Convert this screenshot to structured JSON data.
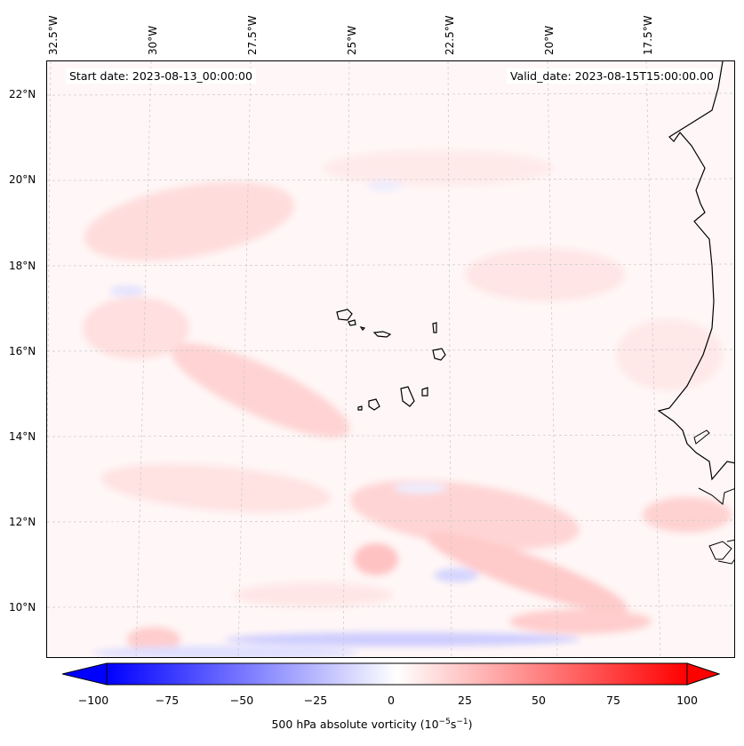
{
  "map": {
    "start_date": "Start date: 2023-08-13_00:00:00",
    "valid_date": "Valid_date: 2023-08-15T15:00:00.00",
    "lon_labels": [
      "32.5°W",
      "30°W",
      "27.5°W",
      "25°W",
      "22.5°W",
      "20°W",
      "17.5°W"
    ],
    "lat_labels": [
      "22°N",
      "20°N",
      "18°N",
      "16°N",
      "14°N",
      "12°N",
      "10°N"
    ]
  },
  "colorbar": {
    "ticks": [
      "−100",
      "−75",
      "−50",
      "−25",
      "0",
      "25",
      "50",
      "75",
      "100"
    ],
    "label_prefix": "500 hPa absolute vorticity (10",
    "label_exp1": "−5",
    "label_mid": "s",
    "label_exp2": "−1",
    "label_suffix": ")",
    "cmap_low": "#0000ff",
    "cmap_mid": "#ffffff",
    "cmap_high": "#ff0000"
  }
}
